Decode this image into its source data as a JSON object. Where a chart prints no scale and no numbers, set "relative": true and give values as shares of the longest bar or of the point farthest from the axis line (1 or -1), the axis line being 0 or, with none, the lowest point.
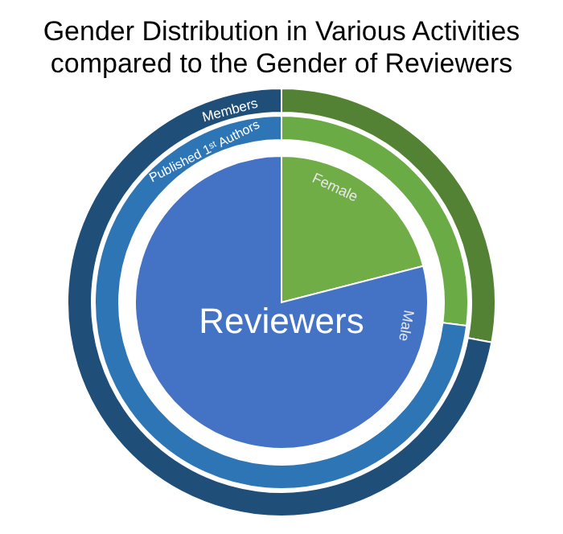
{
  "chart_data": {
    "type": "donut",
    "title": "Gender Distribution in Various Activities compared to the Gender of Reviewers",
    "categories": [
      "Female",
      "Male"
    ],
    "relative": true,
    "series": [
      {
        "name": "Reviewers",
        "values": [
          21,
          79
        ],
        "colors": [
          "#70ad47",
          "#4472c4"
        ]
      },
      {
        "name": "Published 1ˢᵗ Authors",
        "values": [
          27,
          73
        ],
        "colors": [
          "#6aab45",
          "#2e75b6"
        ]
      },
      {
        "name": "Members",
        "values": [
          28,
          72
        ],
        "colors": [
          "#548235",
          "#1f4e79"
        ]
      }
    ]
  }
}
